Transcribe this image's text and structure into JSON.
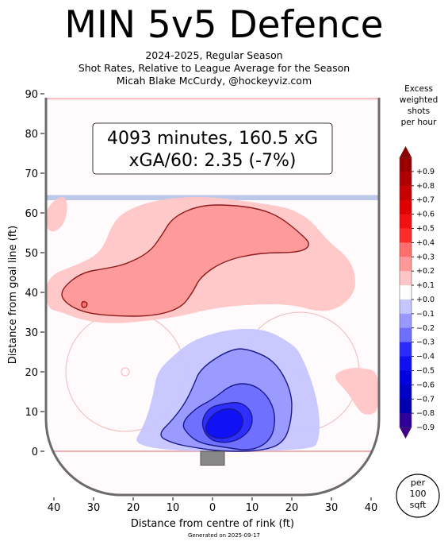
{
  "header": {
    "title": "MIN 5v5 Defence",
    "subtitle_lines": [
      "2024-2025, Regular Season",
      "Shot Rates, Relative to League Average for the Season",
      "Micah Blake McCurdy, @hockeyviz.com"
    ]
  },
  "info_box": {
    "line1": "4093 minutes, 160.5 xG",
    "line2": "xGA/60: 2.35 (-7%)"
  },
  "colorbar": {
    "title_lines": [
      "Excess",
      "weighted",
      "shots",
      "per hour"
    ],
    "tick_labels": [
      "+0.9",
      "+0.8",
      "+0.7",
      "+0.6",
      "+0.5",
      "+0.4",
      "+0.3",
      "+0.2",
      "+0.1",
      "+0.0",
      "−0.1",
      "−0.2",
      "−0.3",
      "−0.4",
      "−0.5",
      "−0.6",
      "−0.7",
      "−0.8",
      "−0.9"
    ],
    "colors": [
      "#880000",
      "#9a0000",
      "#b00000",
      "#c80000",
      "#e00000",
      "#f41010",
      "#ff2a2a",
      "#ff6e6e",
      "#ff9898",
      "#ffc6c6",
      "#ffffff",
      "#c6c6ff",
      "#9898ff",
      "#6e6eff",
      "#2a2aff",
      "#1010f4",
      "#0000e0",
      "#0000c8",
      "#0000b0",
      "#30009a",
      "#400088"
    ]
  },
  "unit_badge": {
    "lines": [
      "per",
      "100",
      "sqft"
    ]
  },
  "footer": "Generated on 2025-09-17",
  "chart_data": {
    "type": "heatmap",
    "xlabel": "Distance from centre of rink (ft)",
    "ylabel": "Distance from goal line (ft)",
    "xlim": [
      -42,
      42
    ],
    "ylim": [
      -11,
      90
    ],
    "x_ticks": [
      -40,
      -30,
      -20,
      -10,
      0,
      10,
      20,
      30,
      40
    ],
    "x_tick_labels": [
      "40",
      "30",
      "20",
      "10",
      "0",
      "10",
      "20",
      "30",
      "40"
    ],
    "y_ticks": [
      0,
      10,
      20,
      30,
      40,
      50,
      60,
      70,
      80,
      90
    ],
    "y_tick_labels": [
      "0",
      "10",
      "20",
      "30",
      "40",
      "50",
      "60",
      "70",
      "80",
      "90"
    ],
    "value_range": [
      -0.9,
      0.9
    ],
    "regions": [
      {
        "level": 0.1,
        "points": [
          [
            -42,
            44
          ],
          [
            -34,
            47
          ],
          [
            -28,
            50
          ],
          [
            -25,
            58
          ],
          [
            -21,
            61
          ],
          [
            -15,
            63
          ],
          [
            -8,
            64
          ],
          [
            0,
            64
          ],
          [
            8,
            63
          ],
          [
            15,
            62
          ],
          [
            20,
            61
          ],
          [
            25,
            58
          ],
          [
            29,
            53
          ],
          [
            34,
            49
          ],
          [
            36,
            45
          ],
          [
            36,
            40
          ],
          [
            32,
            36
          ],
          [
            27,
            35
          ],
          [
            20,
            37
          ],
          [
            10,
            37
          ],
          [
            0,
            36
          ],
          [
            -8,
            34
          ],
          [
            -15,
            33
          ],
          [
            -25,
            32
          ],
          [
            -33,
            33
          ],
          [
            -38,
            35
          ],
          [
            -42,
            36
          ]
        ]
      },
      {
        "level": 0.2,
        "points": [
          [
            -38,
            41
          ],
          [
            -33,
            45
          ],
          [
            -27,
            46
          ],
          [
            -22,
            47
          ],
          [
            -16,
            50
          ],
          [
            -13,
            54
          ],
          [
            -10,
            59
          ],
          [
            -3,
            62
          ],
          [
            5,
            62
          ],
          [
            12,
            61
          ],
          [
            17,
            59
          ],
          [
            22,
            55
          ],
          [
            25,
            52
          ],
          [
            22,
            50
          ],
          [
            12,
            50
          ],
          [
            3,
            48
          ],
          [
            -3,
            44
          ],
          [
            -5,
            40
          ],
          [
            -8,
            36
          ],
          [
            -15,
            34
          ],
          [
            -25,
            34
          ],
          [
            -33,
            35
          ],
          [
            -38,
            38
          ]
        ]
      },
      {
        "level": 0.3,
        "points": [
          [
            -33,
            37.8
          ],
          [
            -31.5,
            37.5
          ],
          [
            -31.8,
            36.2
          ],
          [
            -33,
            36.2
          ]
        ]
      },
      {
        "level": 0.1,
        "points": [
          [
            -42,
            61
          ],
          [
            -39,
            64
          ],
          [
            -37,
            64
          ],
          [
            -36.5,
            61
          ],
          [
            -37.5,
            57
          ],
          [
            -40,
            55
          ],
          [
            -42,
            56
          ]
        ]
      },
      {
        "level": 0.1,
        "points": [
          [
            30,
            19
          ],
          [
            34,
            21
          ],
          [
            38,
            21
          ],
          [
            42,
            20
          ],
          [
            42,
            10
          ],
          [
            39,
            9
          ],
          [
            37,
            10
          ],
          [
            34,
            15
          ]
        ]
      },
      {
        "level": -0.1,
        "points": [
          [
            -21,
            0
          ],
          [
            -17,
            7
          ],
          [
            -15,
            14
          ],
          [
            -14,
            20
          ],
          [
            -10,
            24
          ],
          [
            -5,
            28
          ],
          [
            3,
            30.5
          ],
          [
            10,
            31
          ],
          [
            15,
            30
          ],
          [
            20,
            27
          ],
          [
            22,
            25
          ],
          [
            25,
            18
          ],
          [
            27,
            10
          ],
          [
            27,
            3
          ],
          [
            25,
            0
          ]
        ]
      },
      {
        "level": -0.2,
        "points": [
          [
            -14,
            4
          ],
          [
            -10,
            8
          ],
          [
            -7,
            12
          ],
          [
            -5,
            16
          ],
          [
            -3,
            21
          ],
          [
            5,
            26
          ],
          [
            10,
            25.5
          ],
          [
            16,
            22.5
          ],
          [
            20,
            15
          ],
          [
            20,
            8
          ],
          [
            18,
            2
          ],
          [
            12,
            0
          ],
          [
            2,
            0
          ],
          [
            -5,
            1
          ],
          [
            -10,
            2
          ]
        ]
      },
      {
        "level": -0.3,
        "points": [
          [
            -8,
            7
          ],
          [
            -4,
            11
          ],
          [
            0,
            13
          ],
          [
            5,
            17
          ],
          [
            10,
            17
          ],
          [
            14,
            14
          ],
          [
            16,
            9
          ],
          [
            15,
            3
          ],
          [
            10,
            0
          ],
          [
            3,
            1
          ],
          [
            -3,
            2
          ],
          [
            -6,
            4
          ]
        ]
      },
      {
        "level": -0.4,
        "points": [
          [
            -3,
            7
          ],
          [
            -1,
            11
          ],
          [
            3,
            12
          ],
          [
            7,
            12.5
          ],
          [
            10,
            10
          ],
          [
            10,
            6
          ],
          [
            7,
            3
          ],
          [
            3,
            2
          ],
          [
            -1,
            3
          ]
        ]
      },
      {
        "level": -0.5,
        "points": [
          [
            -2,
            6
          ],
          [
            0,
            9.5
          ],
          [
            4,
            11
          ],
          [
            7,
            10
          ],
          [
            8,
            7
          ],
          [
            6,
            4
          ],
          [
            2,
            3
          ],
          [
            -1,
            4
          ]
        ]
      }
    ]
  }
}
